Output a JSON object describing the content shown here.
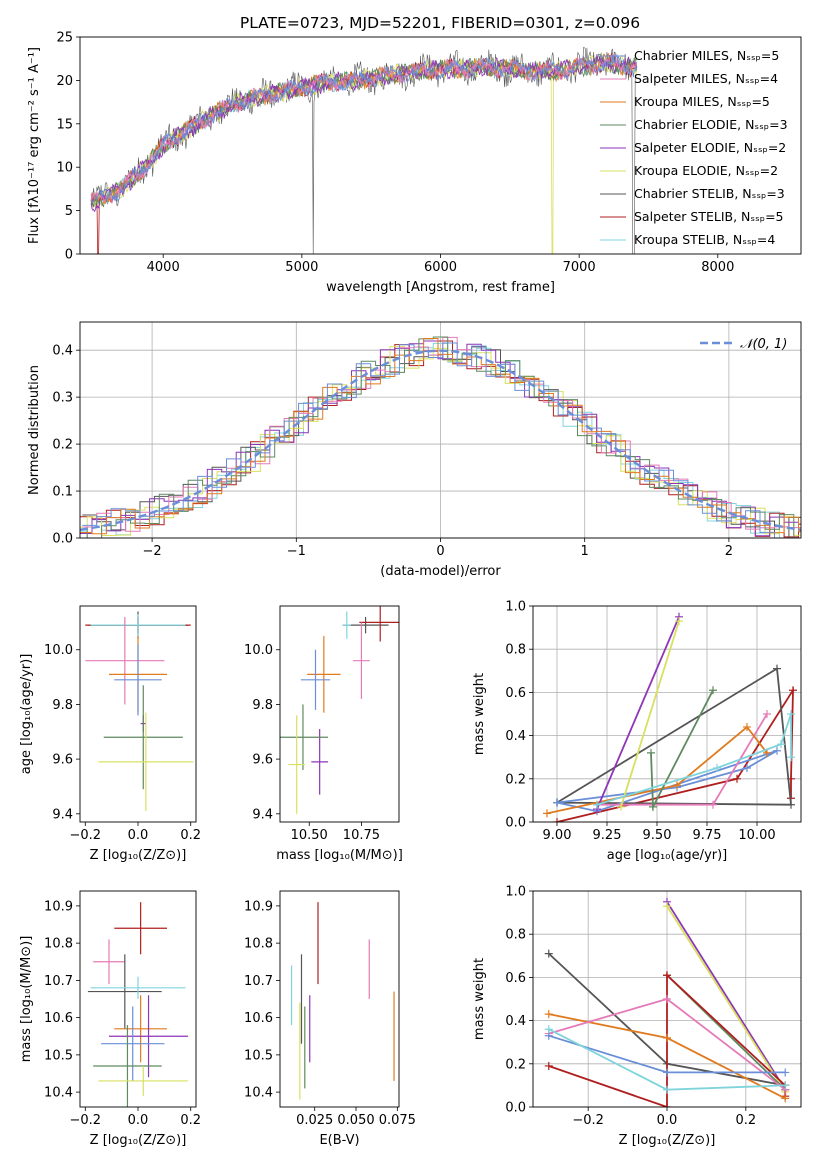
{
  "figure": {
    "title": "PLATE=0723, MJD=52201, FIBERID=0301, z=0.096"
  },
  "chart_data": [
    {
      "id": "spectrum",
      "type": "line",
      "xlabel": "wavelength [Angstrom, rest frame]",
      "ylabel": "Flux [fλ10⁻¹⁷ erg cm⁻² s⁻¹ A⁻¹]",
      "xlim": [
        3400,
        8600
      ],
      "ylim": [
        0,
        25
      ],
      "xticks": [
        4000,
        5000,
        6000,
        7000,
        8000
      ],
      "yticks": [
        0,
        5,
        10,
        15,
        20,
        25
      ],
      "grid": false,
      "legend_position": "top-right",
      "continuum_x": [
        3500,
        3700,
        3900,
        4000,
        4200,
        4400,
        4600,
        4800,
        5000,
        5200,
        5400,
        5600,
        5800,
        6000,
        6200,
        6400,
        6600,
        6800,
        7000,
        7200,
        7400
      ],
      "continuum_y": [
        6.0,
        7.5,
        10.5,
        12.5,
        14.5,
        16.5,
        17.8,
        18.5,
        19.2,
        19.8,
        20.0,
        20.5,
        21.0,
        21.3,
        21.4,
        21.5,
        21.2,
        21.0,
        21.6,
        22.0,
        21.5
      ],
      "series": [
        {
          "name": "Chabrier MILES, Nₛₛₚ=5",
          "color": "#6a8fd8"
        },
        {
          "name": "Salpeter MILES, Nₛₛₚ=4",
          "color": "#e67ab8"
        },
        {
          "name": "Kroupa MILES, Nₛₛₚ=5",
          "color": "#e07a1f"
        },
        {
          "name": "Chabrier ELODIE, Nₛₛₚ=3",
          "color": "#5f8a5f"
        },
        {
          "name": "Salpeter ELODIE, Nₛₛₚ=2",
          "color": "#8e35b8"
        },
        {
          "name": "Kroupa ELODIE, Nₛₛₚ=2",
          "color": "#d8e060"
        },
        {
          "name": "Chabrier STELIB, Nₛₛₚ=3",
          "color": "#555555"
        },
        {
          "name": "Salpeter STELIB, Nₛₛₚ=5",
          "color": "#b01f1f"
        },
        {
          "name": "Kroupa STELIB, Nₛₛₚ=4",
          "color": "#7fd4dc"
        }
      ]
    },
    {
      "id": "residuals",
      "type": "step",
      "xlabel": "(data-model)/error",
      "ylabel": "Normed distribution",
      "xlim": [
        -2.5,
        2.5
      ],
      "ylim": [
        0,
        0.46
      ],
      "xticks": [
        -2,
        -1,
        0,
        1,
        2
      ],
      "yticks": [
        0.0,
        0.1,
        0.2,
        0.3,
        0.4
      ],
      "grid": true,
      "legend_position": "top-right",
      "legend_label": "𝒩(0, 1)",
      "gaussian": {
        "mean": 0,
        "sigma": 1,
        "color": "#6a8fd8"
      }
    },
    {
      "id": "age-metallicity",
      "type": "errorbar",
      "xlabel": "Z [log₁₀(Z/Z⊙)]",
      "ylabel": "age  [log₁₀(age/yr)]",
      "xlim": [
        -0.22,
        0.22
      ],
      "ylim": [
        9.37,
        10.16
      ],
      "xticks": [
        -0.2,
        0.0,
        0.2
      ],
      "yticks": [
        9.4,
        9.6,
        9.8,
        10.0
      ],
      "grid": false,
      "points": [
        {
          "color": "#555555",
          "x": 0.0,
          "y": 10.09,
          "xerr": 0.19,
          "yerr": 0.05
        },
        {
          "color": "#b01f1f",
          "x": 0.0,
          "y": 10.09,
          "xerr": 0.2,
          "yerr": 0.03
        },
        {
          "color": "#7fd4dc",
          "x": 0.0,
          "y": 10.09,
          "xerr": 0.18,
          "yerr": 0.04
        },
        {
          "color": "#e67ab8",
          "x": -0.05,
          "y": 9.96,
          "xerr": 0.15,
          "yerr": 0.16
        },
        {
          "color": "#e07a1f",
          "x": 0.0,
          "y": 9.91,
          "xerr": 0.11,
          "yerr": 0.14
        },
        {
          "color": "#6a8fd8",
          "x": 0.0,
          "y": 9.89,
          "xerr": 0.09,
          "yerr": 0.13
        },
        {
          "color": "#8e35b8",
          "x": 0.02,
          "y": 9.73,
          "xerr": 0.01,
          "yerr": 0.03
        },
        {
          "color": "#5f8a5f",
          "x": 0.02,
          "y": 9.68,
          "xerr": 0.15,
          "yerr": 0.19
        },
        {
          "color": "#d8e060",
          "x": 0.03,
          "y": 9.59,
          "xerr": 0.18,
          "yerr": 0.18
        }
      ]
    },
    {
      "id": "age-mass",
      "type": "errorbar",
      "xlabel": "mass [log₁₀(M/M⊙)]",
      "ylabel": "",
      "xlim": [
        10.36,
        10.93
      ],
      "ylim": [
        9.37,
        10.16
      ],
      "xticks": [
        10.5,
        10.75
      ],
      "yticks": [
        9.4,
        9.6,
        9.8,
        10.0
      ],
      "grid": false,
      "points": [
        {
          "color": "#555555",
          "x": 10.77,
          "y": 10.09,
          "xerr": 0.11,
          "yerr": 0.03
        },
        {
          "color": "#b01f1f",
          "x": 10.84,
          "y": 10.1,
          "xerr": 0.1,
          "yerr": 0.07
        },
        {
          "color": "#7fd4dc",
          "x": 10.68,
          "y": 10.09,
          "xerr": 0.02,
          "yerr": 0.05
        },
        {
          "color": "#e67ab8",
          "x": 10.75,
          "y": 9.96,
          "xerr": 0.04,
          "yerr": 0.14
        },
        {
          "color": "#e07a1f",
          "x": 10.57,
          "y": 9.91,
          "xerr": 0.08,
          "yerr": 0.14
        },
        {
          "color": "#6a8fd8",
          "x": 10.53,
          "y": 9.89,
          "xerr": 0.07,
          "yerr": 0.11
        },
        {
          "color": "#8e35b8",
          "x": 10.55,
          "y": 9.59,
          "xerr": 0.04,
          "yerr": 0.12
        },
        {
          "color": "#5f8a5f",
          "x": 10.47,
          "y": 9.68,
          "xerr": 0.12,
          "yerr": 0.12
        },
        {
          "color": "#d8e060",
          "x": 10.44,
          "y": 9.58,
          "xerr": 0.04,
          "yerr": 0.18
        }
      ]
    },
    {
      "id": "massweight-age",
      "type": "line",
      "xlabel": "age  [log₁₀(age/yr)]",
      "ylabel": "mass weight",
      "xlim": [
        8.88,
        10.22
      ],
      "ylim": [
        0,
        1.0
      ],
      "xticks": [
        9.0,
        9.25,
        9.5,
        9.75,
        10.0
      ],
      "yticks": [
        0.0,
        0.2,
        0.4,
        0.6,
        0.8,
        1.0
      ],
      "grid": true,
      "series": [
        {
          "color": "#b01f1f",
          "x": [
            9.0,
            9.9,
            10.18,
            10.17,
            10.17
          ],
          "y": [
            0.0,
            0.2,
            0.61,
            0.2,
            0.11
          ]
        },
        {
          "color": "#555555",
          "x": [
            9.0,
            10.1,
            10.17,
            9.0
          ],
          "y": [
            0.09,
            0.71,
            0.08,
            0.09
          ]
        },
        {
          "color": "#6a8fd8",
          "x": [
            9.0,
            9.6,
            9.95,
            10.1,
            9.2,
            9.0
          ],
          "y": [
            0.09,
            0.16,
            0.25,
            0.33,
            0.05,
            0.09
          ]
        },
        {
          "color": "#e67ab8",
          "x": [
            9.2,
            9.78,
            10.05
          ],
          "y": [
            0.08,
            0.08,
            0.5
          ]
        },
        {
          "color": "#e07a1f",
          "x": [
            8.95,
            9.6,
            9.95,
            10.05
          ],
          "y": [
            0.04,
            0.17,
            0.44,
            0.32
          ]
        },
        {
          "color": "#5f8a5f",
          "x": [
            9.47,
            9.48,
            9.78
          ],
          "y": [
            0.32,
            0.07,
            0.61
          ]
        },
        {
          "color": "#8e35b8",
          "x": [
            9.2,
            9.61
          ],
          "y": [
            0.06,
            0.95
          ]
        },
        {
          "color": "#d8e060",
          "x": [
            9.32,
            9.61
          ],
          "y": [
            0.07,
            0.93
          ]
        },
        {
          "color": "#7fd4dc",
          "x": [
            9.2,
            9.8,
            10.12,
            10.17,
            10.17
          ],
          "y": [
            0.08,
            0.25,
            0.36,
            0.5,
            0.3
          ]
        }
      ]
    },
    {
      "id": "mass-metallicity",
      "type": "errorbar",
      "xlabel": "Z [log₁₀(Z/Z⊙)]",
      "ylabel": "mass [log₁₀(M/M⊙)]",
      "xlim": [
        -0.22,
        0.22
      ],
      "ylim": [
        10.36,
        10.94
      ],
      "xticks": [
        -0.2,
        0.0,
        0.2
      ],
      "yticks": [
        10.4,
        10.5,
        10.6,
        10.7,
        10.8,
        10.9
      ],
      "grid": false,
      "points": [
        {
          "color": "#b01f1f",
          "x": 0.01,
          "y": 10.84,
          "xerr": 0.1,
          "yerr": 0.07
        },
        {
          "color": "#e67ab8",
          "x": -0.11,
          "y": 10.75,
          "xerr": 0.06,
          "yerr": 0.06
        },
        {
          "color": "#555555",
          "x": -0.05,
          "y": 10.67,
          "xerr": 0.14,
          "yerr": 0.1
        },
        {
          "color": "#7fd4dc",
          "x": 0.0,
          "y": 10.68,
          "xerr": 0.18,
          "yerr": 0.03
        },
        {
          "color": "#e07a1f",
          "x": 0.01,
          "y": 10.57,
          "xerr": 0.1,
          "yerr": 0.09
        },
        {
          "color": "#8e35b8",
          "x": 0.04,
          "y": 10.55,
          "xerr": 0.15,
          "yerr": 0.11
        },
        {
          "color": "#6a8fd8",
          "x": -0.02,
          "y": 10.53,
          "xerr": 0.12,
          "yerr": 0.1
        },
        {
          "color": "#5f8a5f",
          "x": -0.04,
          "y": 10.47,
          "xerr": 0.13,
          "yerr": 0.11
        },
        {
          "color": "#d8e060",
          "x": 0.02,
          "y": 10.43,
          "xerr": 0.17,
          "yerr": 0.04
        }
      ]
    },
    {
      "id": "mass-ebv",
      "type": "errorbar",
      "xlabel": "E(B-V)",
      "ylabel": "",
      "xlim": [
        0.004,
        0.076
      ],
      "ylim": [
        10.36,
        10.94
      ],
      "xticks": [
        0.025,
        0.05,
        0.075
      ],
      "yticks": [
        10.4,
        10.5,
        10.6,
        10.7,
        10.8,
        10.9
      ],
      "grid": false,
      "points": [
        {
          "color": "#7fd4dc",
          "x": 0.011,
          "y": 10.66,
          "xerr": 0.0,
          "yerr": 0.08
        },
        {
          "color": "#d8e060",
          "x": 0.016,
          "y": 10.51,
          "xerr": 0.0,
          "yerr": 0.13
        },
        {
          "color": "#555555",
          "x": 0.017,
          "y": 10.65,
          "xerr": 0.0,
          "yerr": 0.12
        },
        {
          "color": "#5f8a5f",
          "x": 0.019,
          "y": 10.52,
          "xerr": 0.0,
          "yerr": 0.11
        },
        {
          "color": "#8e35b8",
          "x": 0.022,
          "y": 10.57,
          "xerr": 0.0,
          "yerr": 0.09
        },
        {
          "color": "#b01f1f",
          "x": 0.027,
          "y": 10.8,
          "xerr": 0.0,
          "yerr": 0.11
        },
        {
          "color": "#e67ab8",
          "x": 0.058,
          "y": 10.73,
          "xerr": 0.0,
          "yerr": 0.08
        },
        {
          "color": "#e07a1f",
          "x": 0.073,
          "y": 10.55,
          "xerr": 0.0,
          "yerr": 0.12
        }
      ]
    },
    {
      "id": "massweight-metallicity",
      "type": "line",
      "xlabel": "Z [log₁₀(Z/Z⊙)]",
      "ylabel": "mass weight",
      "xlim": [
        -0.34,
        0.34
      ],
      "ylim": [
        0,
        1.0
      ],
      "xticks": [
        -0.2,
        0.0,
        0.2
      ],
      "yticks": [
        0.0,
        0.2,
        0.4,
        0.6,
        0.8,
        1.0
      ],
      "grid": true,
      "series": [
        {
          "color": "#555555",
          "x": [
            -0.3,
            0.0,
            0.3
          ],
          "y": [
            0.71,
            0.2,
            0.1
          ]
        },
        {
          "color": "#8e35b8",
          "x": [
            0.0,
            0.3
          ],
          "y": [
            0.95,
            0.08
          ]
        },
        {
          "color": "#d8e060",
          "x": [
            0.0,
            0.3
          ],
          "y": [
            0.93,
            0.07
          ]
        },
        {
          "color": "#5f8a5f",
          "x": [
            0.0,
            0.3
          ],
          "y": [
            0.61,
            0.08
          ]
        },
        {
          "color": "#b01f1f",
          "x": [
            -0.3,
            0.0,
            0.0,
            0.3,
            0.3
          ],
          "y": [
            0.19,
            0.0,
            0.61,
            0.1,
            0.05
          ]
        },
        {
          "color": "#e07a1f",
          "x": [
            -0.3,
            0.0,
            0.3
          ],
          "y": [
            0.43,
            0.32,
            0.04
          ]
        },
        {
          "color": "#e67ab8",
          "x": [
            -0.3,
            0.0,
            0.3
          ],
          "y": [
            0.34,
            0.5,
            0.08
          ]
        },
        {
          "color": "#6a8fd8",
          "x": [
            -0.3,
            0.0,
            0.3
          ],
          "y": [
            0.33,
            0.16,
            0.16
          ]
        },
        {
          "color": "#7fd4dc",
          "x": [
            -0.3,
            0.0,
            0.3
          ],
          "y": [
            0.36,
            0.08,
            0.1
          ]
        }
      ]
    }
  ]
}
